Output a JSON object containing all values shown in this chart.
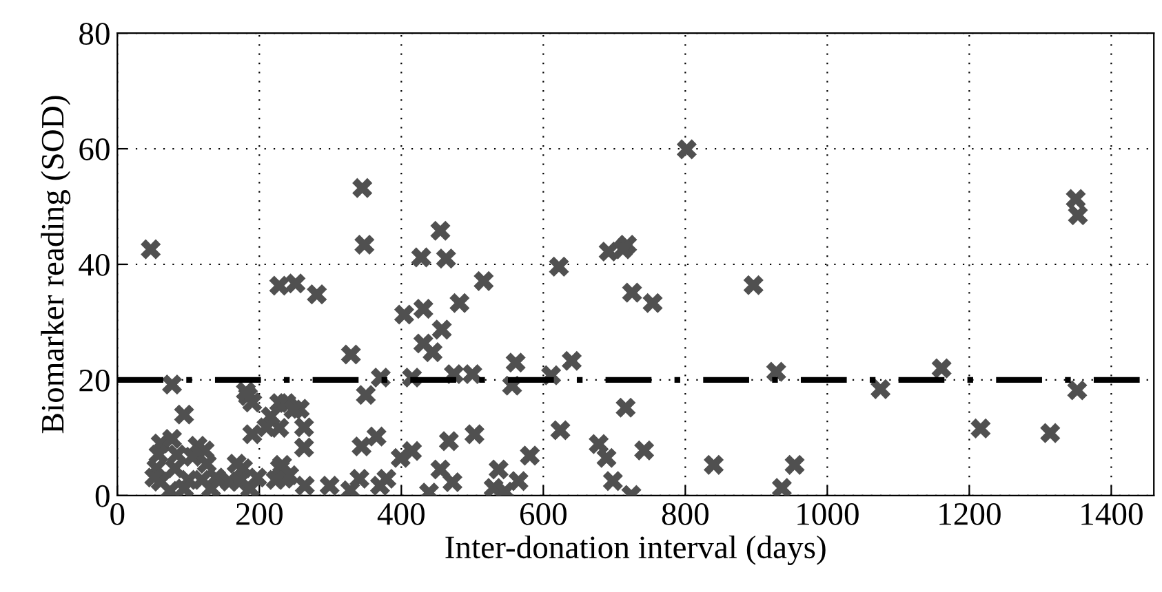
{
  "chart_data": {
    "type": "scatter",
    "xlabel": "Inter-donation interval (days)",
    "ylabel": "Biomarker reading (SOD)",
    "x": [
      47,
      345,
      348,
      228,
      251,
      281,
      455,
      428,
      463,
      622,
      516,
      482,
      404,
      431,
      457,
      431,
      444,
      329,
      561,
      640,
      371,
      415,
      474,
      500,
      556,
      611,
      350,
      228,
      238,
      257,
      263,
      228,
      263,
      624,
      503,
      344,
      365,
      467,
      415,
      399,
      581,
      455,
      472,
      439,
      537,
      565,
      530,
      546,
      341,
      379,
      370,
      232,
      235,
      264,
      299,
      328,
      802,
      692,
      718,
      712,
      725,
      754,
      896,
      928,
      1075,
      716,
      678,
      689,
      742,
      698,
      724,
      840,
      954,
      936,
      1350,
      1353,
      1161,
      1352,
      1216,
      1314,
      77,
      94,
      184,
      190,
      181,
      216,
      210,
      190,
      61,
      77,
      58,
      55,
      61,
      81,
      84,
      113,
      123,
      106,
      126,
      74,
      100,
      94,
      139,
      132,
      158,
      177,
      171,
      197,
      187,
      168,
      229,
      242,
      223,
      119,
      52,
      248
    ],
    "values": [
      42.6,
      53.2,
      43.4,
      36.3,
      36.7,
      34.8,
      45.8,
      41.2,
      41.0,
      39.6,
      37.1,
      33.3,
      31.3,
      32.3,
      28.7,
      26.3,
      24.8,
      24.4,
      23.0,
      23.3,
      20.4,
      20.4,
      21.0,
      21.0,
      19.0,
      20.8,
      17.4,
      16.0,
      16.0,
      15.0,
      11.8,
      11.7,
      8.3,
      11.3,
      10.6,
      8.5,
      10.2,
      9.4,
      7.7,
      6.5,
      6.9,
      4.5,
      2.3,
      0.5,
      4.5,
      2.5,
      1.3,
      0.7,
      2.9,
      2.9,
      1.7,
      5.3,
      2.9,
      1.7,
      1.7,
      0.9,
      59.9,
      42.2,
      43.4,
      42.6,
      35.1,
      33.3,
      36.4,
      21.4,
      18.4,
      15.2,
      8.9,
      6.5,
      7.8,
      2.5,
      0.1,
      5.3,
      5.3,
      1.3,
      51.3,
      48.5,
      22.0,
      18.2,
      11.6,
      10.8,
      19.2,
      14.0,
      17.2,
      16.1,
      18.0,
      13.7,
      11.8,
      10.6,
      9.0,
      9.8,
      7.1,
      4.7,
      2.4,
      4.7,
      7.1,
      8.6,
      7.8,
      6.7,
      5.5,
      0.8,
      2.7,
      1.2,
      3.1,
      1.2,
      2.4,
      4.7,
      2.4,
      3.1,
      1.2,
      5.5,
      4.7,
      3.5,
      2.7,
      2.7,
      3.1,
      14.9
    ],
    "color": "#505050",
    "marker": "cross",
    "xlim": [
      0,
      1460
    ],
    "ylim": [
      0,
      80
    ],
    "xticks": [
      0,
      200,
      400,
      600,
      800,
      1000,
      1200,
      1400
    ],
    "yticks": [
      0,
      20,
      40,
      60,
      80
    ],
    "grid": true,
    "ref_lines": [
      {
        "axis": "y",
        "value": 20,
        "color": "#000000",
        "line_style": "dashed"
      }
    ]
  }
}
